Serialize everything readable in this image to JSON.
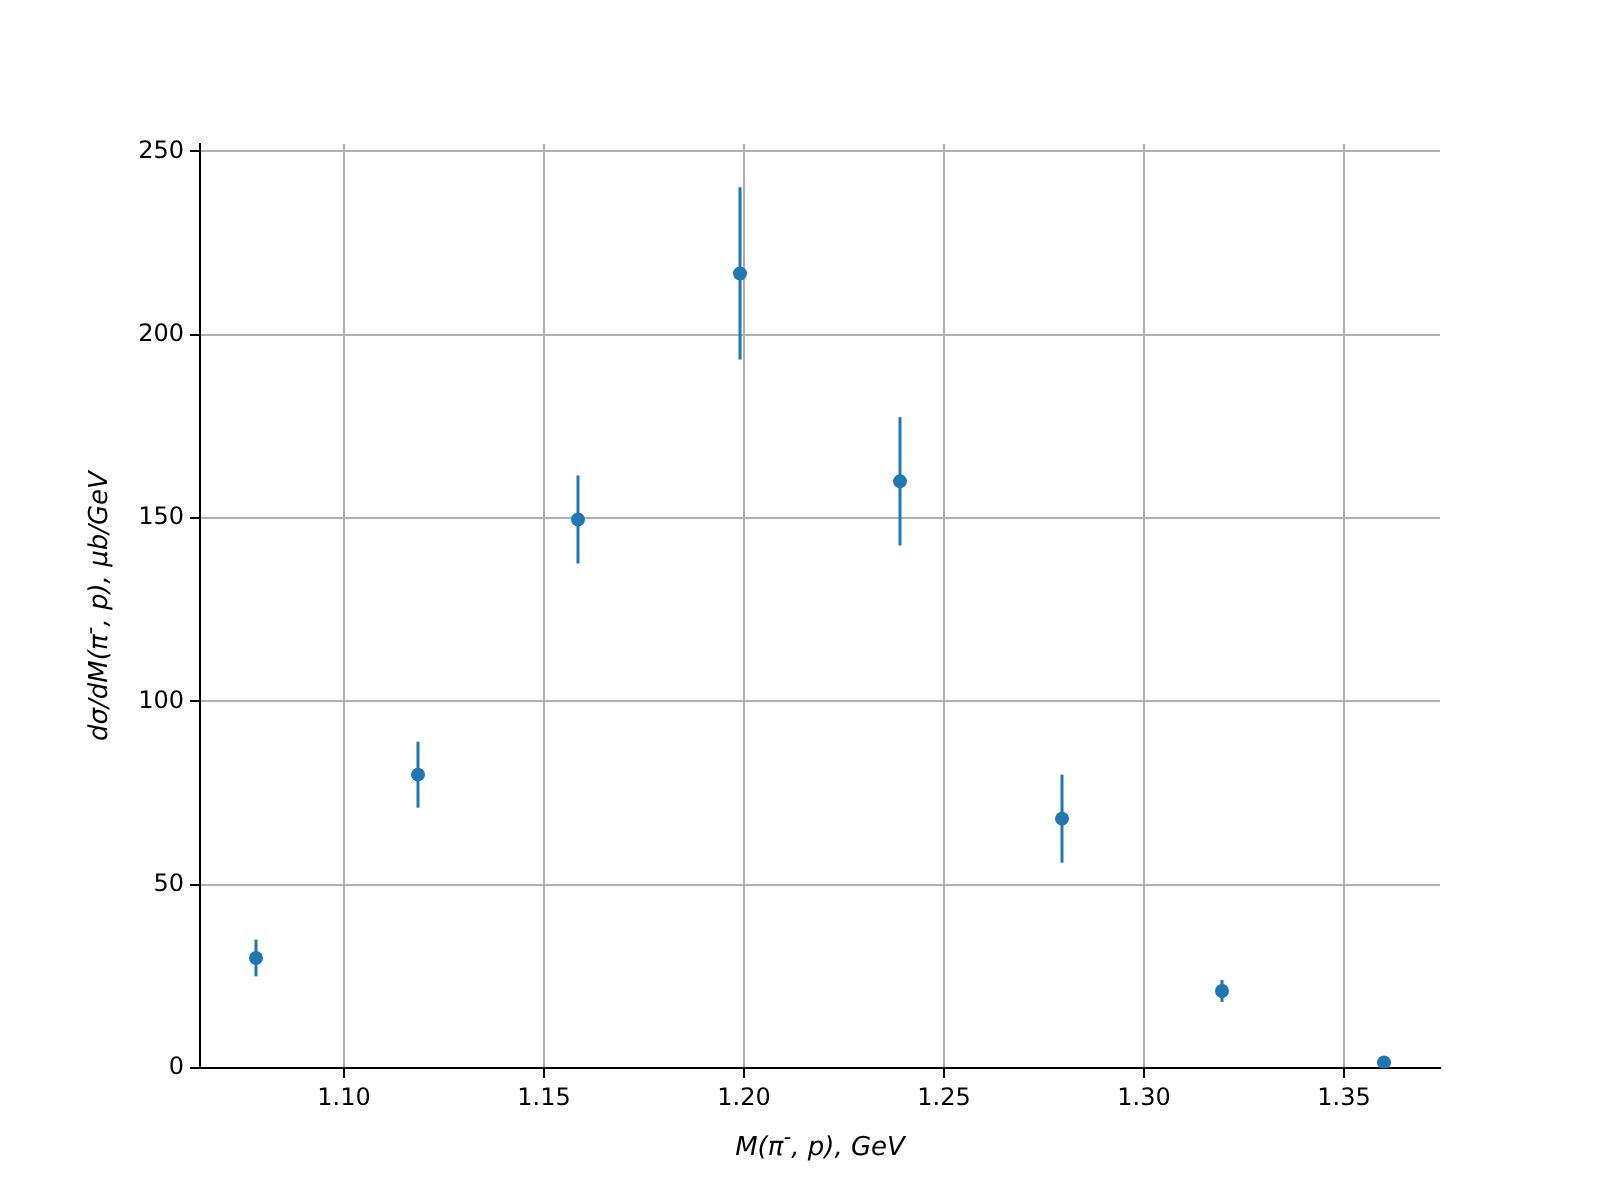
{
  "chart_data": {
    "type": "scatter",
    "xlabel": "M(π$^{-}$, p), GeV",
    "ylabel": "dσ/dM(π$^{-}$, p), μb/GeV",
    "x": [
      1.078,
      1.1185,
      1.1585,
      1.199,
      1.239,
      1.2795,
      1.3195,
      1.36
    ],
    "series": [
      {
        "color": "#1f77b4",
        "values": [
          30,
          80,
          149.6,
          216.7,
          160,
          68,
          21,
          1.5
        ],
        "errors": [
          5,
          9,
          12,
          23.5,
          17.5,
          12,
          3,
          1
        ]
      }
    ],
    "xlim": [
      1.064,
      1.374
    ],
    "ylim": [
      0,
      252
    ],
    "xticks": [
      {
        "value": 1.1,
        "label": "1.10"
      },
      {
        "value": 1.15,
        "label": "1.15"
      },
      {
        "value": 1.2,
        "label": "1.20"
      },
      {
        "value": 1.25,
        "label": "1.25"
      },
      {
        "value": 1.3,
        "label": "1.30"
      },
      {
        "value": 1.35,
        "label": "1.35"
      }
    ],
    "yticks": [
      0,
      50,
      100,
      150,
      200,
      250
    ],
    "grid": true,
    "marker": "circle",
    "legend": false
  }
}
